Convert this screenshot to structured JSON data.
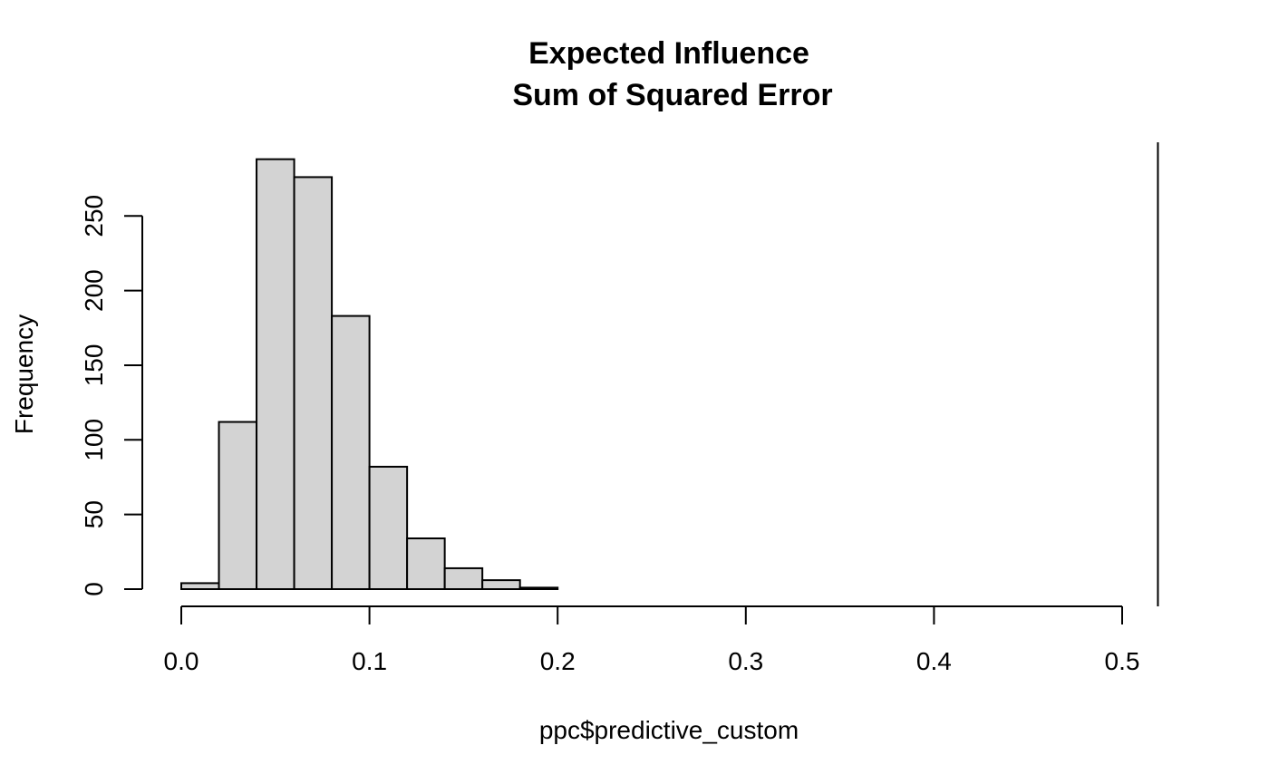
{
  "chart_data": {
    "type": "bar",
    "title": "Expected Influence",
    "subtitle": "Sum of Squared Error",
    "xlabel": "ppc$predictive_custom",
    "ylabel": "Frequency",
    "bin_width": 0.02,
    "bins": [
      {
        "x0": 0.0,
        "x1": 0.02,
        "count": 4
      },
      {
        "x0": 0.02,
        "x1": 0.04,
        "count": 112
      },
      {
        "x0": 0.04,
        "x1": 0.06,
        "count": 288
      },
      {
        "x0": 0.06,
        "x1": 0.08,
        "count": 276
      },
      {
        "x0": 0.08,
        "x1": 0.1,
        "count": 183
      },
      {
        "x0": 0.1,
        "x1": 0.12,
        "count": 82
      },
      {
        "x0": 0.12,
        "x1": 0.14,
        "count": 34
      },
      {
        "x0": 0.14,
        "x1": 0.16,
        "count": 14
      },
      {
        "x0": 0.16,
        "x1": 0.18,
        "count": 6
      },
      {
        "x0": 0.18,
        "x1": 0.2,
        "count": 1
      }
    ],
    "xticks": [
      "0.0",
      "0.1",
      "0.2",
      "0.3",
      "0.4",
      "0.5"
    ],
    "yticks": [
      "0",
      "50",
      "100",
      "150",
      "200",
      "250"
    ],
    "xlim": [
      0,
      0.5
    ],
    "ylim": [
      0,
      288
    ],
    "reference_line_x": 0.519,
    "bar_fill": "#d3d3d3",
    "bar_stroke": "#000000",
    "grid": false,
    "legend": "none"
  }
}
